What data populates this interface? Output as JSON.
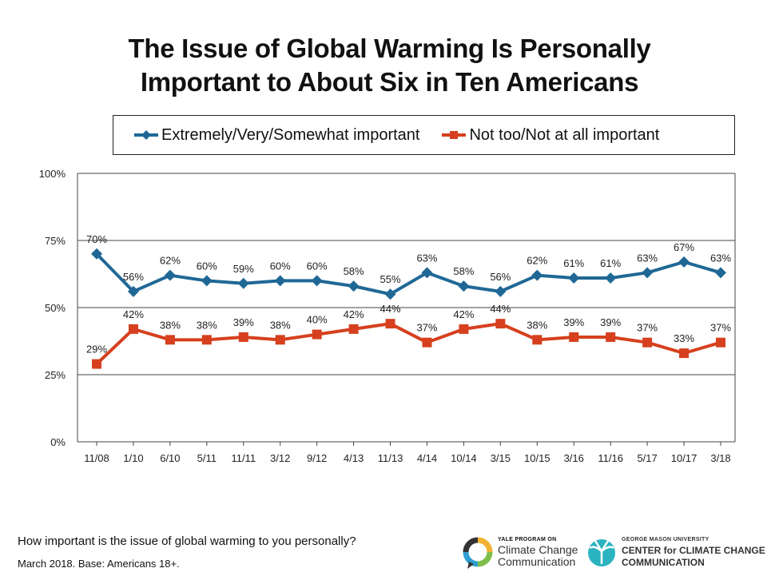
{
  "title_line1": "The Issue of Global Warming Is Personally",
  "title_line2": "Important to About Six in Ten Americans",
  "footer": {
    "question": "How important is the issue of global warming to you personally?",
    "base": "March 2018. Base: Americans 18+."
  },
  "logos": {
    "yale_small": "YALE PROGRAM ON",
    "yale_line1": "Climate Change",
    "yale_line2": "Communication",
    "gmu_small": "GEORGE MASON UNIVERSITY",
    "gmu_line1": "CENTER for CLIMATE CHANGE",
    "gmu_line2": "COMMUNICATION"
  },
  "chart_data": {
    "type": "line",
    "title": "The Issue of Global Warming Is Personally Important to About Six in Ten Americans",
    "xlabel": "",
    "ylabel": "",
    "ylim": [
      0,
      100
    ],
    "yticks": [
      "0%",
      "25%",
      "50%",
      "75%",
      "100%"
    ],
    "ytick_values": [
      0,
      25,
      50,
      75,
      100
    ],
    "grid": true,
    "legend_position": "top",
    "categories": [
      "11/08",
      "1/10",
      "6/10",
      "5/11",
      "11/11",
      "3/12",
      "9/12",
      "4/13",
      "11/13",
      "4/14",
      "10/14",
      "3/15",
      "10/15",
      "3/16",
      "11/16",
      "5/17",
      "10/17",
      "3/18"
    ],
    "series": [
      {
        "name": "Extremely/Very/Somewhat important",
        "color": "#1f6896",
        "marker": "diamond",
        "values": [
          70,
          56,
          62,
          60,
          59,
          60,
          60,
          58,
          55,
          63,
          58,
          56,
          62,
          61,
          61,
          63,
          67,
          63
        ]
      },
      {
        "name": "Not too/Not at all important",
        "color": "#d6401e",
        "marker": "square",
        "values": [
          29,
          42,
          38,
          38,
          39,
          38,
          40,
          42,
          44,
          37,
          42,
          44,
          38,
          39,
          39,
          37,
          33,
          37
        ]
      }
    ]
  }
}
